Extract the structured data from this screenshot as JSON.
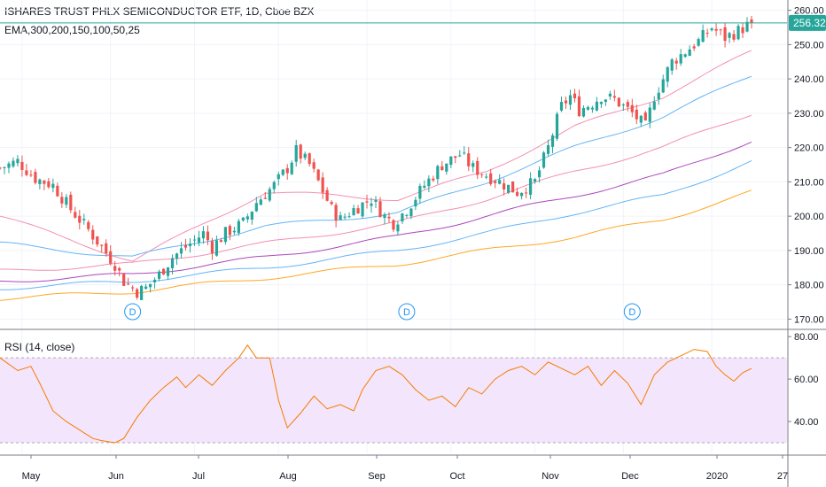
{
  "header": {
    "title": "ISHARES TRUST PHLX SEMICONDUCTOR ETF, 1D, Cboe BZX",
    "ema_label": "EMA,300,200,150,100,50,25",
    "rsi_label": "RSI (14, close)"
  },
  "price_badge": "256.32",
  "dividend_marker": "D",
  "colors": {
    "up": "#26a69a",
    "down": "#ef5350",
    "last_price_line": "#26a69a",
    "rsi_line": "#f57c00",
    "rsi_band": "#f3e5fb",
    "ema": [
      "#f48fb1",
      "#64b5f6",
      "#f48fb1",
      "#ab47bc",
      "#64b5f6",
      "#ffa726"
    ]
  },
  "chart_data": [
    {
      "type": "candlestick",
      "name": "price",
      "y_ticks": [
        "260.00",
        "250.00",
        "240.00",
        "230.00",
        "220.00",
        "210.00",
        "200.00",
        "190.00",
        "180.00",
        "170.00"
      ],
      "ylim": [
        167,
        263
      ],
      "x_ticks": [
        "May",
        "Jun",
        "Jul",
        "Aug",
        "Sep",
        "Oct",
        "Nov",
        "Dec",
        "2020",
        "27"
      ],
      "last_price": 256.32,
      "dividend_markers_at": [
        "Jun",
        "Sep",
        "Dec"
      ],
      "close_path": [
        [
          0,
          214
        ],
        [
          4,
          216
        ],
        [
          8,
          211
        ],
        [
          12,
          209
        ],
        [
          16,
          202
        ],
        [
          20,
          196
        ],
        [
          23,
          191
        ],
        [
          26,
          186
        ],
        [
          28,
          181
        ],
        [
          31,
          178
        ],
        [
          33,
          179
        ],
        [
          36,
          183
        ],
        [
          39,
          188
        ],
        [
          43,
          192
        ],
        [
          46,
          195
        ],
        [
          48,
          191
        ],
        [
          51,
          195
        ],
        [
          55,
          198
        ],
        [
          58,
          204
        ],
        [
          62,
          209
        ],
        [
          65,
          214
        ],
        [
          67,
          219
        ],
        [
          70,
          215
        ],
        [
          72,
          210
        ],
        [
          75,
          202
        ],
        [
          77,
          199
        ],
        [
          80,
          202
        ],
        [
          84,
          205
        ],
        [
          87,
          200
        ],
        [
          89,
          198
        ],
        [
          92,
          202
        ],
        [
          96,
          209
        ],
        [
          100,
          215
        ],
        [
          104,
          218
        ],
        [
          107,
          214
        ],
        [
          110,
          212
        ],
        [
          113,
          210
        ],
        [
          117,
          207
        ],
        [
          121,
          210
        ],
        [
          124,
          220
        ],
        [
          127,
          232
        ],
        [
          129,
          235
        ],
        [
          131,
          231
        ],
        [
          134,
          233
        ],
        [
          136,
          235
        ],
        [
          139,
          234
        ],
        [
          141,
          232
        ],
        [
          143,
          230
        ],
        [
          146,
          226
        ],
        [
          148,
          235
        ],
        [
          152,
          245
        ],
        [
          155,
          248
        ],
        [
          158,
          251
        ],
        [
          161,
          255
        ],
        [
          164,
          252
        ],
        [
          167,
          254
        ],
        [
          170,
          256.32
        ]
      ],
      "ema_series": [
        {
          "label": "EMA 25",
          "values": [
            [
              0,
              200
            ],
            [
              30,
              187
            ],
            [
              60,
              207
            ],
            [
              90,
              205
            ],
            [
              110,
              213
            ],
            [
              130,
              226
            ],
            [
              150,
              235
            ],
            [
              170,
              248
            ]
          ]
        },
        {
          "label": "EMA 50",
          "values": [
            [
              0,
              192
            ],
            [
              30,
              188
            ],
            [
              60,
              197
            ],
            [
              90,
              201
            ],
            [
              110,
              210
            ],
            [
              130,
              220
            ],
            [
              150,
              229
            ],
            [
              170,
              241
            ]
          ]
        },
        {
          "label": "EMA 100",
          "values": [
            [
              0,
              184
            ],
            [
              30,
              186
            ],
            [
              60,
              192
            ],
            [
              90,
              198
            ],
            [
              110,
              205
            ],
            [
              130,
              213
            ],
            [
              150,
              220
            ],
            [
              170,
              230
            ]
          ]
        },
        {
          "label": "EMA 150",
          "values": [
            [
              0,
              181
            ],
            [
              30,
              183
            ],
            [
              60,
              188
            ],
            [
              90,
              194
            ],
            [
              110,
              200
            ],
            [
              130,
              206
            ],
            [
              150,
              212
            ],
            [
              170,
              222
            ]
          ]
        },
        {
          "label": "EMA 200",
          "values": [
            [
              0,
              179
            ],
            [
              30,
              181
            ],
            [
              60,
              185
            ],
            [
              90,
              190
            ],
            [
              110,
              195
            ],
            [
              130,
              201
            ],
            [
              150,
              206
            ],
            [
              170,
              216
            ]
          ]
        },
        {
          "label": "EMA 300",
          "values": [
            [
              0,
              176
            ],
            [
              30,
              178
            ],
            [
              60,
              182
            ],
            [
              90,
              186
            ],
            [
              110,
              190
            ],
            [
              130,
              194
            ],
            [
              150,
              199
            ],
            [
              170,
              207
            ]
          ]
        }
      ]
    },
    {
      "type": "line",
      "name": "RSI (14, close)",
      "y_ticks": [
        "80.00",
        "60.00",
        "40.00"
      ],
      "ylim": [
        25,
        83
      ],
      "band": [
        30,
        70
      ],
      "values": [
        [
          0,
          70
        ],
        [
          4,
          64
        ],
        [
          7,
          66
        ],
        [
          9,
          58
        ],
        [
          12,
          45
        ],
        [
          15,
          40
        ],
        [
          18,
          36
        ],
        [
          21,
          32
        ],
        [
          23,
          31
        ],
        [
          26,
          30
        ],
        [
          28,
          32
        ],
        [
          31,
          42
        ],
        [
          34,
          50
        ],
        [
          37,
          56
        ],
        [
          40,
          61
        ],
        [
          42,
          56
        ],
        [
          45,
          62
        ],
        [
          48,
          57
        ],
        [
          51,
          64
        ],
        [
          54,
          70
        ],
        [
          56,
          76
        ],
        [
          58,
          70
        ],
        [
          61,
          70
        ],
        [
          63,
          50
        ],
        [
          65,
          37
        ],
        [
          68,
          44
        ],
        [
          71,
          52
        ],
        [
          74,
          46
        ],
        [
          77,
          48
        ],
        [
          80,
          45
        ],
        [
          82,
          55
        ],
        [
          85,
          64
        ],
        [
          88,
          66
        ],
        [
          91,
          62
        ],
        [
          94,
          55
        ],
        [
          97,
          50
        ],
        [
          100,
          52
        ],
        [
          103,
          47
        ],
        [
          106,
          56
        ],
        [
          109,
          53
        ],
        [
          112,
          60
        ],
        [
          115,
          64
        ],
        [
          118,
          66
        ],
        [
          121,
          62
        ],
        [
          124,
          68
        ],
        [
          127,
          65
        ],
        [
          130,
          62
        ],
        [
          133,
          66
        ],
        [
          136,
          57
        ],
        [
          139,
          64
        ],
        [
          142,
          58
        ],
        [
          145,
          48
        ],
        [
          148,
          62
        ],
        [
          151,
          68
        ],
        [
          154,
          71
        ],
        [
          157,
          74
        ],
        [
          160,
          73
        ],
        [
          162,
          66
        ],
        [
          164,
          62
        ],
        [
          166,
          59
        ],
        [
          168,
          63
        ],
        [
          170,
          65
        ]
      ]
    }
  ]
}
